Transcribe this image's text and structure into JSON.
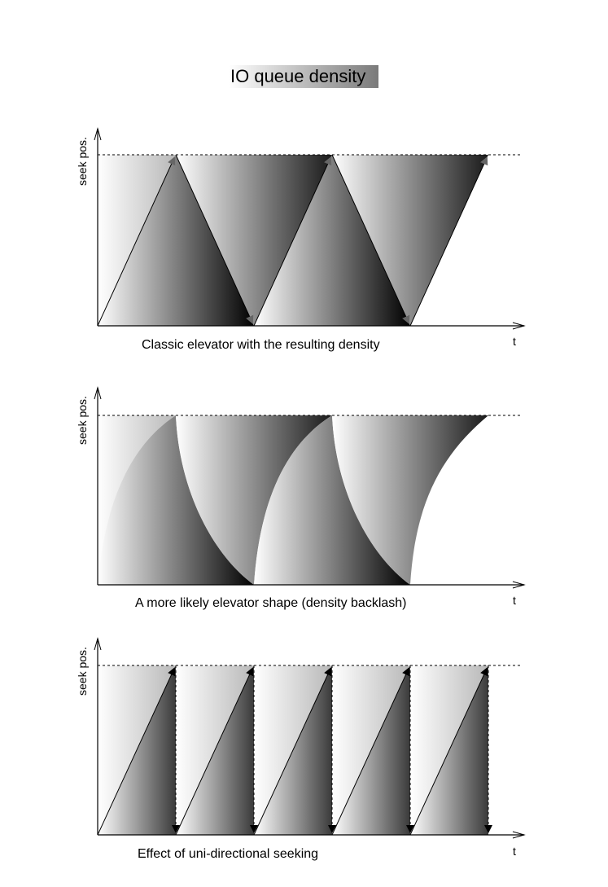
{
  "title": "IO queue density",
  "panels": [
    {
      "id": "classic",
      "caption": "Classic elevator with the resulting density",
      "y_axis_label": "seek pos.",
      "x_axis_label": "t"
    },
    {
      "id": "likely",
      "caption": "A more likely elevator shape (density backlash)",
      "y_axis_label": "seek pos.",
      "x_axis_label": "t"
    },
    {
      "id": "unidirectional",
      "caption": "Effect of uni-directional seeking",
      "y_axis_label": "seek pos.",
      "x_axis_label": "t"
    }
  ],
  "colors": {
    "dark": "#000000",
    "light": "#ffffff",
    "axis": "#000000"
  }
}
